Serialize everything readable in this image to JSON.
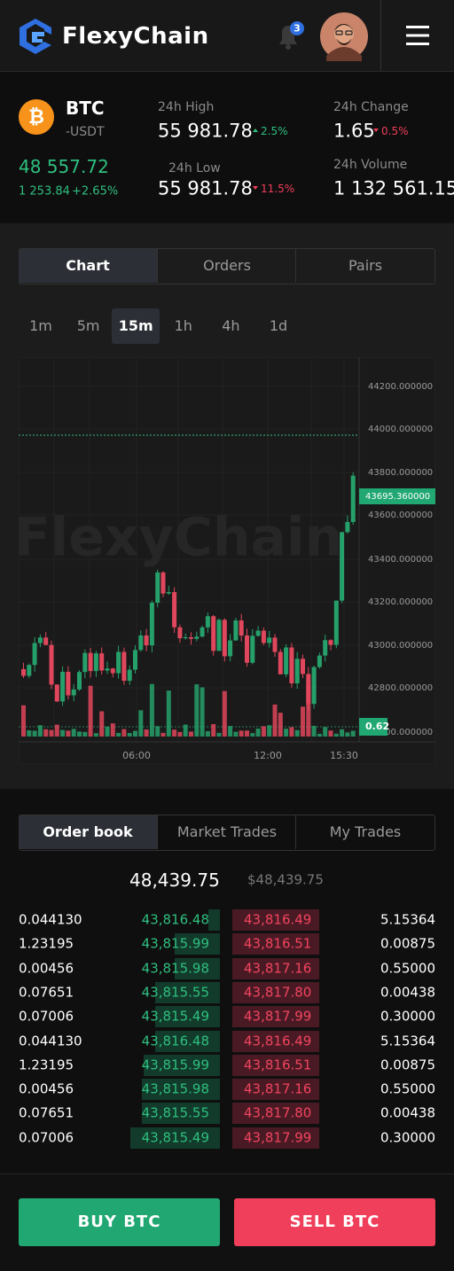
{
  "header": {
    "brand": "FlexyChain",
    "notifications": "3"
  },
  "ticker": {
    "symbol": "BTC",
    "quote": "-USDT",
    "price": "48 557.72",
    "change_abs": "1 253.84",
    "change_pct": "+2.65%",
    "stats": [
      {
        "label": "24h High",
        "value": "55 981.78",
        "change": "2.5%",
        "direction": "up"
      },
      {
        "label": "24h Low",
        "value": "55 981.78",
        "change": "11.5%",
        "direction": "down"
      },
      {
        "label": "24h Change",
        "value": "1.65",
        "change": "0.5%",
        "direction": "down"
      },
      {
        "label": "24h Volume",
        "value": "1 132 561.15"
      }
    ]
  },
  "view_tabs": {
    "items": [
      "Chart",
      "Orders",
      "Pairs"
    ],
    "active": 0
  },
  "timeframes": {
    "items": [
      "1m",
      "5m",
      "15m",
      "1h",
      "4h",
      "1d"
    ],
    "active": 2
  },
  "chart": {
    "watermark": "FlexyChain",
    "y_labels": [
      "44200.000000",
      "44000.000000",
      "43800.000000",
      "43600.000000",
      "43400.000000",
      "43200.000000",
      "43000.000000",
      "42800.000000",
      "42600.000000"
    ],
    "price_tag": "43695.360000",
    "volume_tag": "0.62",
    "x_labels": [
      "06:00",
      "12:00",
      "15:30"
    ]
  },
  "orderbook": {
    "tabs": {
      "items": [
        "Order book",
        "Market Trades",
        "My Trades"
      ],
      "active": 0
    },
    "price": "48,439.75",
    "price_usd": "$48,439.75",
    "rows": [
      [
        "0.044130",
        "43,816.48",
        "43,816.49",
        "5.15364"
      ],
      [
        "1.23195",
        "43,815.99",
        "43,816.51",
        "0.00875"
      ],
      [
        "0.00456",
        "43,815.98",
        "43,817.16",
        "0.55000"
      ],
      [
        "0.07651",
        "43,815.55",
        "43,817.80",
        "0.00438"
      ],
      [
        "0.07006",
        "43,815.49",
        "43,817.99",
        "0.30000"
      ],
      [
        "0.044130",
        "43,816.48",
        "43,816.49",
        "5.15364"
      ],
      [
        "1.23195",
        "43,815.99",
        "43,816.51",
        "0.00875"
      ],
      [
        "0.00456",
        "43,815.98",
        "43,817.16",
        "0.55000"
      ],
      [
        "0.07651",
        "43,815.55",
        "43,817.80",
        "0.00438"
      ],
      [
        "0.07006",
        "43,815.49",
        "43,817.99",
        "0.30000"
      ]
    ]
  },
  "actions": {
    "buy": "BUY BTC",
    "sell": "SELL BTC"
  }
}
